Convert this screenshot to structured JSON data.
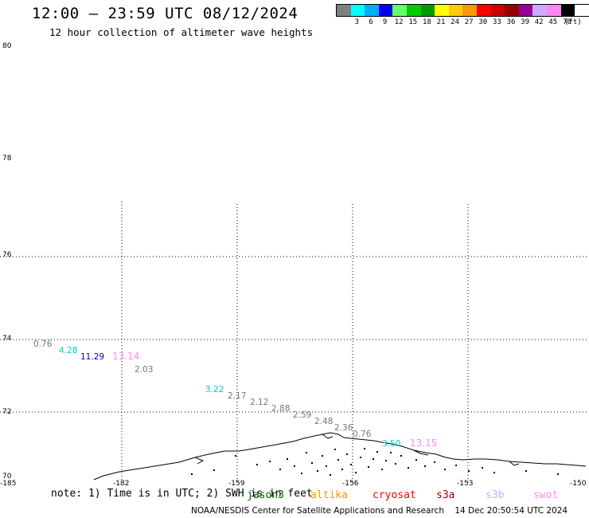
{
  "header": {
    "title": "12:00 — 23:59 UTC 08/12/2024",
    "subtitle": "12 hour collection of altimeter wave heights"
  },
  "legend": {
    "unit": "(ft)",
    "entries": [
      {
        "label": "",
        "color": "#808080"
      },
      {
        "label": "3",
        "color": "#00ffff"
      },
      {
        "label": "6",
        "color": "#00b0ff"
      },
      {
        "label": "9",
        "color": "#0000ff"
      },
      {
        "label": "12",
        "color": "#66ff66"
      },
      {
        "label": "15",
        "color": "#00cc00"
      },
      {
        "label": "18",
        "color": "#009900"
      },
      {
        "label": "21",
        "color": "#ffff00"
      },
      {
        "label": "24",
        "color": "#ffcc00"
      },
      {
        "label": "27",
        "color": "#ff9900"
      },
      {
        "label": "30",
        "color": "#ff0000"
      },
      {
        "label": "33",
        "color": "#cc0000"
      },
      {
        "label": "36",
        "color": "#990000"
      },
      {
        "label": "39",
        "color": "#990099"
      },
      {
        "label": "42",
        "color": "#ccaaff"
      },
      {
        "label": "45",
        "color": "#ff88ee"
      },
      {
        "label": "70",
        "color": "#000000"
      }
    ]
  },
  "map": {
    "lat_labels": [
      "80",
      "78",
      "76",
      "74",
      "72",
      "70"
    ],
    "lon_labels": [
      "-185",
      "-182",
      "-159",
      "-156",
      "-153",
      "-150"
    ],
    "wave_readings": [
      {
        "text": "0.76",
        "color": "#777777"
      },
      {
        "text": "4.28",
        "color": "#00cccc"
      },
      {
        "text": "11.29",
        "color": "#0000cc"
      },
      {
        "text": "13.14",
        "color": "#ff88ee"
      },
      {
        "text": "2.03",
        "color": "#777777"
      },
      {
        "text": "3.22",
        "color": "#00cccc"
      },
      {
        "text": "2.17",
        "color": "#777777"
      },
      {
        "text": "2.12",
        "color": "#777777"
      },
      {
        "text": "2.88",
        "color": "#777777"
      },
      {
        "text": "2.59",
        "color": "#777777"
      },
      {
        "text": "2.48",
        "color": "#777777"
      },
      {
        "text": "2.36",
        "color": "#777777"
      },
      {
        "text": "0.76",
        "color": "#777777"
      },
      {
        "text": "3.50",
        "color": "#00cccc"
      },
      {
        "text": "13.15",
        "color": "#ff88ee"
      }
    ]
  },
  "footer": {
    "note": "note: 1) Time is in UTC; 2) SWH is in feet",
    "satellites": [
      {
        "name": "jason3",
        "color": "#006600"
      },
      {
        "name": "altika",
        "color": "#ff9900"
      },
      {
        "name": "cryosat",
        "color": "#ff0000"
      },
      {
        "name": "s3a",
        "color": "#990000"
      },
      {
        "name": "s3b",
        "color": "#ccaaff"
      },
      {
        "name": "swot",
        "color": "#ff88ee"
      }
    ],
    "credit": "NOAA/NESDIS Center for Satellite Applications and Research",
    "timestamp": "14 Dec 20:50:54 UTC 2024"
  }
}
